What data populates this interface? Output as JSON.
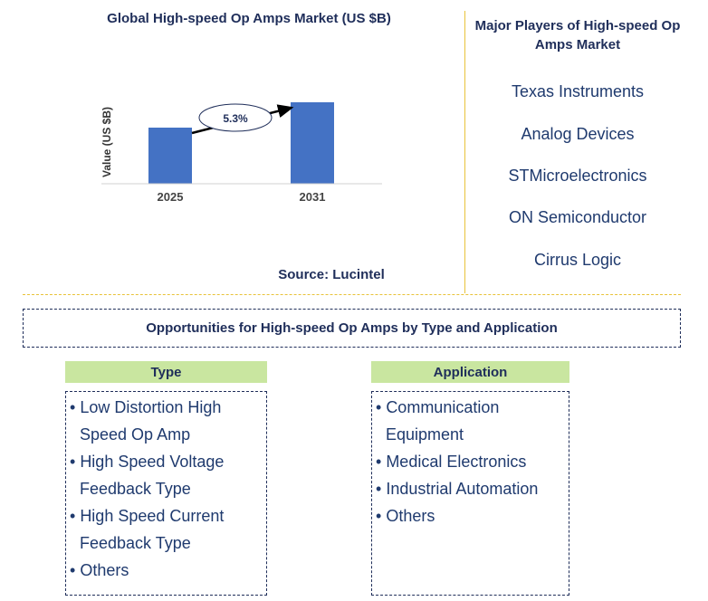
{
  "chart_data": {
    "type": "bar",
    "title": "Global High-speed Op Amps Market (US $B)",
    "categories": [
      "2025",
      "2031"
    ],
    "values": [
      0.62,
      0.9
    ],
    "ylabel": "Value (US $B)",
    "ylim": [
      0,
      1
    ],
    "annotation": "5.3%",
    "bar_color": "#4472c4",
    "grid": false
  },
  "source": "Source: Lucintel",
  "players": {
    "title": "Major Players of High-speed Op Amps Market",
    "items": [
      "Texas Instruments",
      "Analog Devices",
      "STMicroelectronics",
      "ON Semiconductor",
      "Cirrus Logic"
    ]
  },
  "opportunities": {
    "title": "Opportunities for High-speed Op Amps by Type and Application",
    "type": {
      "heading": "Type",
      "items": [
        "Low Distortion High Speed Op Amp",
        "High Speed Voltage Feedback Type",
        "High Speed Current Feedback Type",
        "Others"
      ]
    },
    "application": {
      "heading": "Application",
      "items": [
        "Communication Equipment",
        "Medical Electronics",
        "Industrial Automation",
        "Others"
      ]
    }
  },
  "colors": {
    "header_fill": "#c9e6a0",
    "divider": "#e8c33a",
    "text": "#1f2e5a"
  }
}
